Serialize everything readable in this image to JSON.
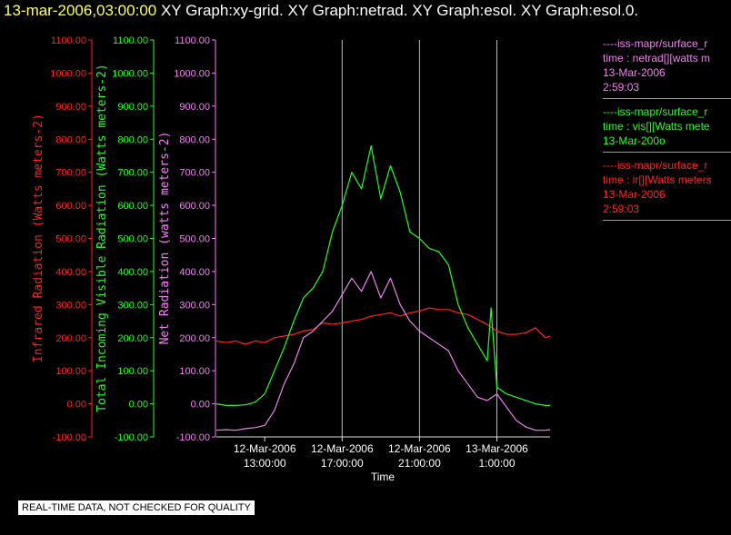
{
  "header": {
    "datetime": "13-mar-2006,03:00:00",
    "graphs": "XY Graph:xy-grid.  XY Graph:netrad.  XY Graph:esol.  XY Graph:esol.0."
  },
  "colors": {
    "ir": "#ff2020",
    "vis": "#20ff20",
    "net": "#ee82ee",
    "grid": "#bbbbbb",
    "axis": "#dddddd"
  },
  "legend": [
    {
      "line1": "----iss-mapr/surface_r",
      "line2": "time : netrad[][watts m",
      "line3": "13-Mar-2006",
      "line4": "2:59:03",
      "color": "#ee82ee"
    },
    {
      "line1": "----iss-mapr/surface_r",
      "line2": "time : vis[][Watts mete",
      "line3": "13-Mar-200o",
      "line4": "",
      "color": "#20ff20"
    },
    {
      "line1": "----iss-mapr/surface_r",
      "line2": "time : ir[][Watts meters",
      "line3": "13-Mar-2006",
      "line4": "2:59:03",
      "color": "#ff2020"
    }
  ],
  "footer": {
    "qc_notice": "REAL-TIME DATA, NOT CHECKED FOR QUALITY"
  },
  "chart_data": {
    "type": "line",
    "xlabel": "Time",
    "x_range_hours": [
      10.5,
      27.75
    ],
    "x_ticks": [
      {
        "hour": 13,
        "date": "12-Mar-2006",
        "time": "13:00:00"
      },
      {
        "hour": 17,
        "date": "12-Mar-2006",
        "time": "17:00:00"
      },
      {
        "hour": 21,
        "date": "12-Mar-2006",
        "time": "21:00:00"
      },
      {
        "hour": 25,
        "date": "13-Mar-2006",
        "time": "1:00:00"
      }
    ],
    "y_ticks": [
      "1100.00",
      "1000.00",
      "900.00",
      "800.00",
      "700.00",
      "600.00",
      "500.00",
      "400.00",
      "300.00",
      "200.00",
      "100.00",
      "0.00",
      "-100.00"
    ],
    "ylim": [
      -100,
      1100
    ],
    "axes": [
      {
        "label": "Infrared Radiation (Watts meters-2)",
        "color": "#ff2020"
      },
      {
        "label": "Total Incoming Visible Radiation (Watts meters-2)",
        "color": "#20ff20"
      },
      {
        "label": "Net Radiation (watts meters-2)",
        "color": "#ee82ee"
      }
    ],
    "grid": "vertical",
    "series": [
      {
        "key": "ir",
        "color": "#ff2020",
        "x": [
          10.5,
          11,
          11.5,
          12,
          12.5,
          13,
          13.5,
          14,
          14.5,
          15,
          15.5,
          16,
          16.5,
          17,
          17.5,
          18,
          18.5,
          19,
          19.5,
          20,
          20.5,
          21,
          21.5,
          22,
          22.5,
          23,
          23.5,
          24,
          24.5,
          25,
          25.5,
          26,
          26.5,
          27,
          27.5,
          27.75
        ],
        "y": [
          190,
          185,
          190,
          180,
          190,
          185,
          200,
          205,
          210,
          220,
          225,
          245,
          240,
          245,
          250,
          255,
          265,
          270,
          275,
          265,
          275,
          280,
          290,
          285,
          285,
          275,
          270,
          255,
          240,
          220,
          210,
          210,
          215,
          230,
          200,
          205
        ]
      },
      {
        "key": "vis",
        "color": "#20ff20",
        "x": [
          10.5,
          11,
          11.5,
          12,
          12.5,
          13,
          13.5,
          14,
          14.5,
          15,
          15.5,
          16,
          16.5,
          17,
          17.5,
          18,
          18.5,
          19,
          19.5,
          20,
          20.5,
          21,
          21.5,
          22,
          22.5,
          23,
          23.5,
          24,
          24.5,
          24.7,
          25,
          25.5,
          26,
          26.5,
          27,
          27.5,
          27.75
        ],
        "y": [
          0,
          -5,
          -5,
          -3,
          5,
          30,
          100,
          170,
          250,
          320,
          350,
          400,
          520,
          600,
          700,
          650,
          780,
          620,
          720,
          640,
          520,
          500,
          470,
          460,
          420,
          300,
          230,
          180,
          130,
          290,
          50,
          30,
          20,
          10,
          0,
          -5,
          -5
        ]
      },
      {
        "key": "net",
        "color": "#ee82ee",
        "x": [
          10.5,
          11,
          11.5,
          12,
          12.5,
          13,
          13.5,
          14,
          14.5,
          15,
          15.5,
          16,
          16.5,
          17,
          17.5,
          18,
          18.5,
          19,
          19.5,
          20,
          20.5,
          21,
          21.5,
          22,
          22.5,
          23,
          23.5,
          24,
          24.5,
          25,
          25.5,
          26,
          26.5,
          27,
          27.5,
          27.75
        ],
        "y": [
          -80,
          -78,
          -80,
          -75,
          -72,
          -65,
          -20,
          60,
          120,
          200,
          220,
          250,
          280,
          330,
          380,
          340,
          400,
          320,
          380,
          300,
          250,
          220,
          200,
          180,
          160,
          100,
          60,
          20,
          10,
          30,
          -10,
          -50,
          -70,
          -80,
          -80,
          -78
        ]
      }
    ]
  }
}
